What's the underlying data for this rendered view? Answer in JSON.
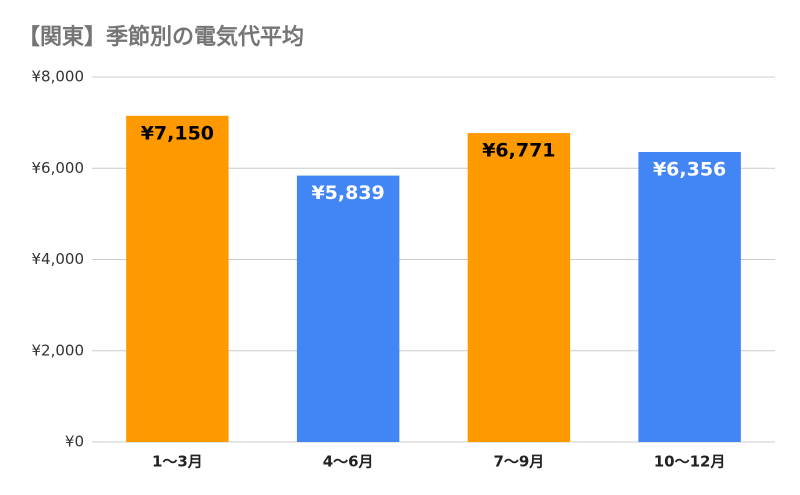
{
  "chart_data": {
    "type": "bar",
    "title": "【関東】季節別の電気代平均",
    "categories": [
      "1〜3月",
      "4〜6月",
      "7〜9月",
      "10〜12月"
    ],
    "values": [
      7150,
      5839,
      6771,
      6356
    ],
    "value_labels": [
      "¥7,150",
      "¥5,839",
      "¥6,771",
      "¥6,356"
    ],
    "colors": [
      "#ff9900",
      "#4285f4",
      "#ff9900",
      "#4285f4"
    ],
    "label_colors": [
      "#000000",
      "#ffffff",
      "#000000",
      "#ffffff"
    ],
    "ylim": [
      0,
      8000
    ],
    "yticks": [
      {
        "value": 0,
        "label": "¥0"
      },
      {
        "value": 2000,
        "label": "¥2,000"
      },
      {
        "value": 4000,
        "label": "¥4,000"
      },
      {
        "value": 6000,
        "label": "¥6,000"
      },
      {
        "value": 8000,
        "label": "¥8,000"
      }
    ],
    "grid": true
  }
}
